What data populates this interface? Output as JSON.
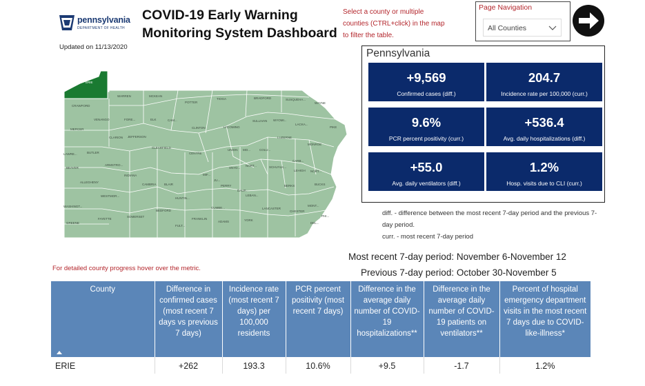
{
  "header": {
    "logo": {
      "brand": "pennsylvania",
      "dept": "DEPARTMENT OF HEALTH"
    },
    "updated": "Updated on 11/13/2020",
    "title": "COVID-19 Early Warning Monitoring System Dashboard",
    "hint": "Select a county or multiple counties (CTRL+click) in the map to filter the table."
  },
  "nav": {
    "label": "Page Navigation",
    "selected": "All Counties",
    "next_icon": "arrow-right-circle-icon"
  },
  "map": {
    "selected_county": "ERIE",
    "colors": {
      "fill": "#9ec3a2",
      "selected": "#1a7a31",
      "border": "#ffffff"
    },
    "labels": [
      "ERIE",
      "CRAWFORD",
      "WARREN",
      "MCKEAN",
      "POTTER",
      "TIOGA",
      "BRADFORD",
      "SUSQUEHA...",
      "WAYNE",
      "VENANGO",
      "FORE...",
      "ELK",
      "CAM...",
      "CLINTON",
      "LYCOMING",
      "SULLIVAN",
      "WYOMI...",
      "LACKA...",
      "PIKE",
      "MERCER",
      "CLARION",
      "JEFFERSON",
      "LUZERNE",
      "MONROE",
      "LAWRE...",
      "BUTLER",
      "CLEARFIELD",
      "CENTRE",
      "UNION",
      "MO...",
      "COLU...",
      "CARB...",
      "BEAVER",
      "ARMSTRO...",
      "SNYD...",
      "NORT...",
      "SCHUYLK...",
      "LEHIGH",
      "NORT...",
      "INDIANA",
      "MIF...",
      "JU...",
      "ALLEGHENY",
      "CAMBRIA",
      "BLAIR",
      "PERRY",
      "DAUP...",
      "BERKS",
      "BUCKS",
      "WESTMOR...",
      "HUNTIN...",
      "LEBAN...",
      "WASHINGT...",
      "BEDFORD",
      "CUMBE...",
      "LANCASTER",
      "MONT...",
      "CHESTER",
      "FAYETTE",
      "SOMERSET",
      "FRANKLIN",
      "ADAMS",
      "YORK",
      "GREENE",
      "FULT...",
      "DEL...",
      "PHI..."
    ]
  },
  "stats": {
    "title": "Pennsylvania",
    "tiles": [
      {
        "value": "+9,569",
        "label": "Confirmed cases (diff.)"
      },
      {
        "value": "204.7",
        "label": "Incidence rate per 100,000 (curr.)"
      },
      {
        "value": "9.6%",
        "label": "PCR percent positivity (curr.)"
      },
      {
        "value": "+536.4",
        "label": "Avg. daily hospitalizations (diff.)"
      },
      {
        "value": "+55.0",
        "label": "Avg. daily ventilators (diff.)"
      },
      {
        "value": "1.2%",
        "label": "Hosp. visits due to CLI (curr.)"
      }
    ],
    "tile_color": "#0b2a6b"
  },
  "notes": {
    "diff": "diff. - difference between the most recent 7-day period and the previous 7-day period.",
    "curr": "curr. - most recent 7-day period"
  },
  "periods": {
    "recent": "Most recent 7-day period: November 6-November 12",
    "previous": "Previous 7-day period: October 30-November 5"
  },
  "hover_hint": "For detailed county progress hover over the metric.",
  "table": {
    "header_color": "#5b86b8",
    "columns": [
      "County",
      "Difference in confirmed cases (most recent 7 days vs previous 7 days)",
      "Incidence rate (most recent 7 days) per 100,000 residents",
      "PCR percent positivity (most recent 7 days)",
      "Difference in the average daily number of COVID-19 hospitalizations**",
      "Difference in the average daily number of COVID-19 patients on ventilators**",
      "Percent of hospital emergency department visits in the most recent 7 days due to COVID-like-illness*"
    ],
    "rows": [
      [
        "ERIE",
        "+262",
        "193.3",
        "10.6%",
        "+9.5",
        "-1.7",
        "1.2%"
      ]
    ]
  }
}
